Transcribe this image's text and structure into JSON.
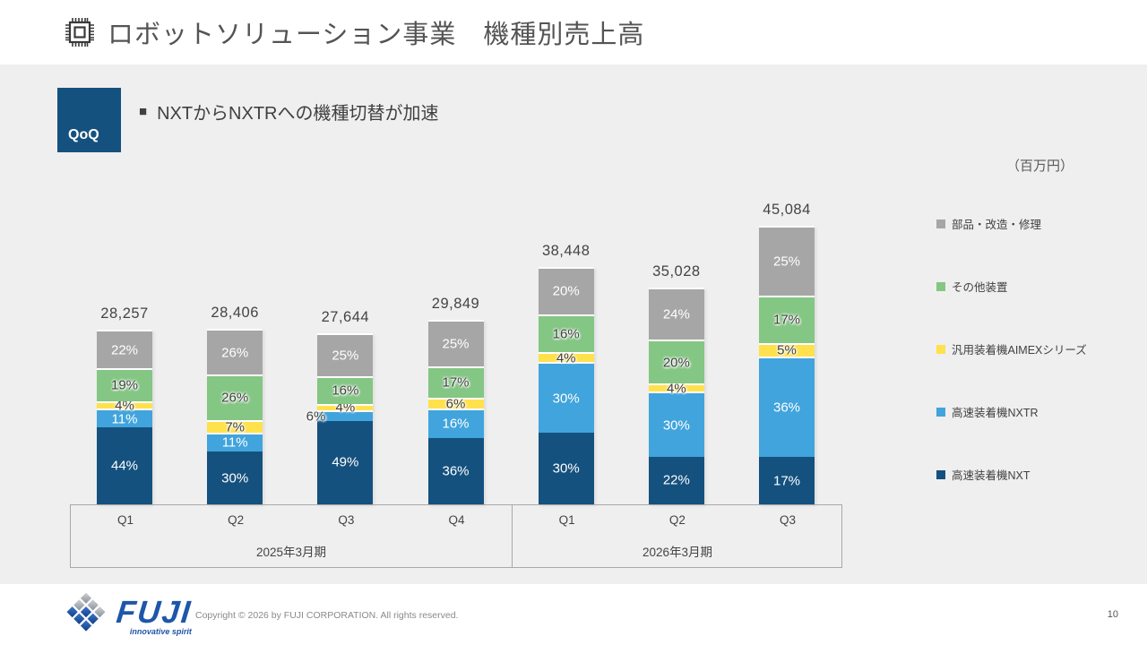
{
  "header": {
    "title": "ロボットソリューション事業　機種別売上高"
  },
  "callout": {
    "badge_label": "QoQ",
    "marker": "■",
    "text": "NXTからNXTRへの機種切替が加速"
  },
  "chart_data": {
    "type": "bar",
    "stacked": true,
    "unit_label": "（百万円）",
    "categories": [
      "Q1",
      "Q2",
      "Q3",
      "Q4",
      "Q1",
      "Q2",
      "Q3"
    ],
    "groups": [
      {
        "label": "2025年3月期",
        "bars": 4
      },
      {
        "label": "2026年3月期",
        "bars": 3
      }
    ],
    "totals": [
      28257,
      28406,
      27644,
      29849,
      38448,
      35028,
      45084
    ],
    "total_labels": [
      "28,257",
      "28,406",
      "27,644",
      "29,849",
      "38,448",
      "35,028",
      "45,084"
    ],
    "series": [
      {
        "name": "高速装着機NXT",
        "color": "#15517E",
        "label_color": "#FFFFFF",
        "halo": false,
        "percents": [
          44,
          30,
          49,
          36,
          30,
          22,
          17
        ]
      },
      {
        "name": "高速装着機NXTR",
        "color": "#41A4DC",
        "label_color": "#FFFFFF",
        "halo": false,
        "percents": [
          11,
          11,
          6,
          16,
          30,
          30,
          36
        ]
      },
      {
        "name": "汎用装着機AIMEXシリーズ",
        "color": "#FFE14D",
        "label_color": "#404040",
        "halo": true,
        "percents": [
          4,
          7,
          4,
          6,
          4,
          4,
          5
        ]
      },
      {
        "name": "その他装置",
        "color": "#84C684",
        "label_color": "#404040",
        "halo": true,
        "percents": [
          19,
          26,
          16,
          17,
          16,
          20,
          17
        ]
      },
      {
        "name": "部品・改造・修理",
        "color": "#A6A6A6",
        "label_color": "#FFFFFF",
        "halo": false,
        "percents": [
          22,
          26,
          25,
          25,
          20,
          24,
          25
        ]
      }
    ],
    "label_overrides": [
      {
        "bar_index": 2,
        "series_index": 1,
        "position": "outside-left"
      }
    ],
    "legend_position": "right",
    "legend_order": "reverse-of-stack"
  },
  "footer": {
    "logo": {
      "wordmark": "FUJI",
      "tagline": "innovative spirit"
    },
    "copyright": "Copyright © 2026 by FUJI CORPORATION. All rights reserved.",
    "page_number": "10"
  }
}
